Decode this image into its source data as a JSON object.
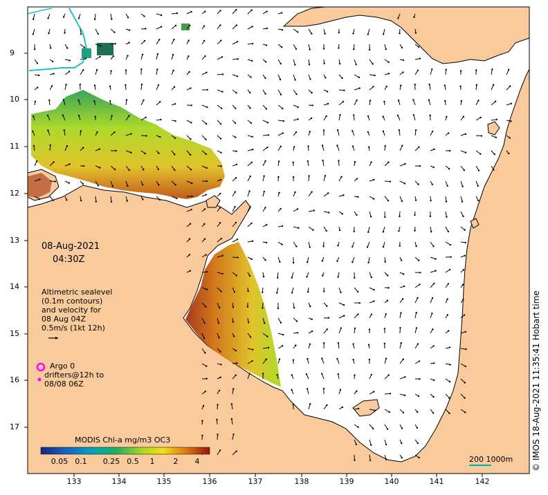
{
  "map": {
    "date": "08-Aug-2021",
    "time": "04:30Z",
    "latitude_ticks": [
      "9",
      "10",
      "11",
      "12",
      "13",
      "14",
      "15",
      "16",
      "17"
    ],
    "longitude_ticks": [
      "133",
      "134",
      "135",
      "136",
      "137",
      "138",
      "139",
      "140",
      "141",
      "142"
    ],
    "colors": {
      "land": "#f9cb9c",
      "ocean": "#ffffff",
      "coastline": "#000000",
      "argo_marker": "#ff00ff",
      "scalebar": "#00b0a0"
    }
  },
  "legend": {
    "line1": "Altimetric sealevel",
    "line2": "(0.1m contours)",
    "line3": "and velocity for",
    "line4": "08 Aug 04Z",
    "line5": "0.5m/s (1kt 12h)"
  },
  "argo": {
    "line1": "Argo 0",
    "line2": "drifters@12h to",
    "line3": "08/08 06Z"
  },
  "colorbar": {
    "title": "MODIS Chl-a mg/m3 OC3",
    "ticks": [
      "0.05",
      "0.1",
      "0.25",
      "0.5",
      "1",
      "2",
      "4"
    ]
  },
  "scalebar": {
    "label": "200  1000m"
  },
  "credit": "© IMOS 18-Aug-2021 11:35:41 Hobart time"
}
